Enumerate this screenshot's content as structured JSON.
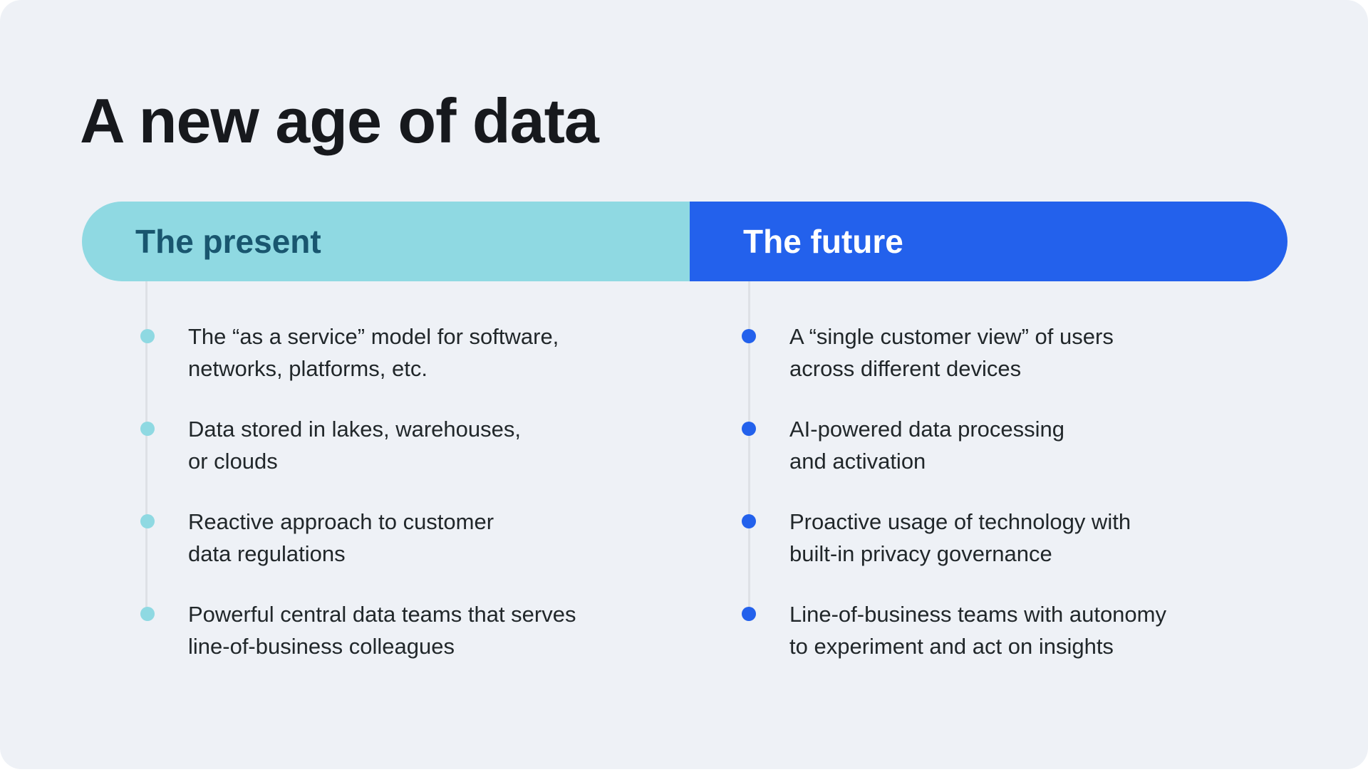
{
  "title": "A new age of data",
  "colors": {
    "card_background": "#EEF1F6",
    "page_background": "#FFFFFF",
    "present_accent": "#8FD9E2",
    "present_text": "#19566F",
    "future_accent": "#2361EC",
    "future_text": "#FFFFFF",
    "body_text": "#21272A",
    "timeline_line": "#DEE1E6"
  },
  "columns": [
    {
      "header": "The present",
      "items": [
        {
          "text": "The “as a service” model for software,\nnetworks, platforms, etc."
        },
        {
          "text": "Data stored in lakes, warehouses,\nor clouds"
        },
        {
          "text": "Reactive approach to customer\ndata regulations"
        },
        {
          "text": "Powerful central data teams that serves\nline-of-business colleagues"
        }
      ]
    },
    {
      "header": "The future",
      "items": [
        {
          "text": "A “single customer view” of users\nacross different devices"
        },
        {
          "text": "AI-powered data processing\nand activation"
        },
        {
          "text": "Proactive usage of technology with\nbuilt-in privacy governance"
        },
        {
          "text": "Line-of-business teams with autonomy\nto experiment and act on insights"
        }
      ]
    }
  ]
}
